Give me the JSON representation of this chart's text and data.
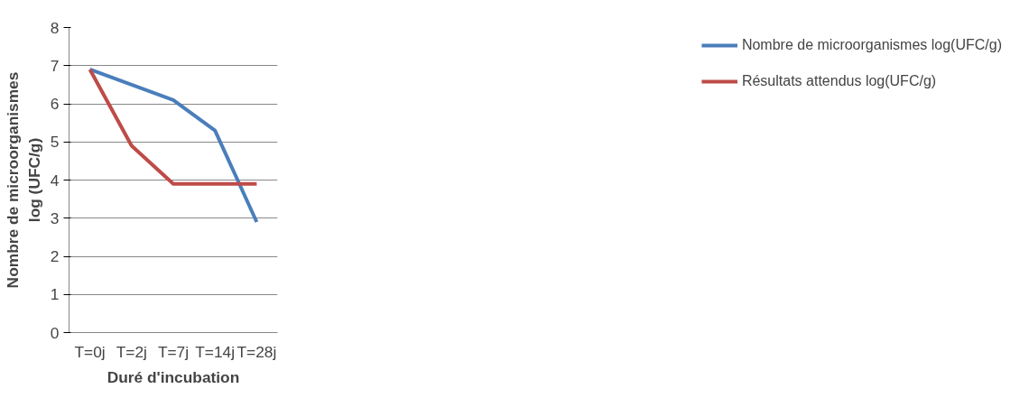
{
  "chart_data": {
    "type": "line",
    "xlabel": "Duré d'incubation",
    "ylabel": "Nombre de microorganismes log (UFC/g)",
    "categories": [
      "T=0j",
      "T=2j",
      "T=7j",
      "T=14j",
      "T=28j"
    ],
    "series": [
      {
        "name": "Nombre de microorganismes log(UFC/g)",
        "color": "#4a7ebb",
        "values": [
          6.9,
          6.5,
          6.1,
          5.3,
          2.9
        ]
      },
      {
        "name": "Résultats attendus log(UFC/g)",
        "color": "#be4b48",
        "values": [
          6.9,
          4.9,
          3.9,
          3.9,
          3.9
        ]
      }
    ],
    "ylim": [
      0,
      8
    ],
    "yticks": [
      0,
      1,
      2,
      3,
      4,
      5,
      6,
      7,
      8
    ],
    "grid": "y",
    "legend": "right",
    "marker": "none",
    "line_style": "solid"
  }
}
